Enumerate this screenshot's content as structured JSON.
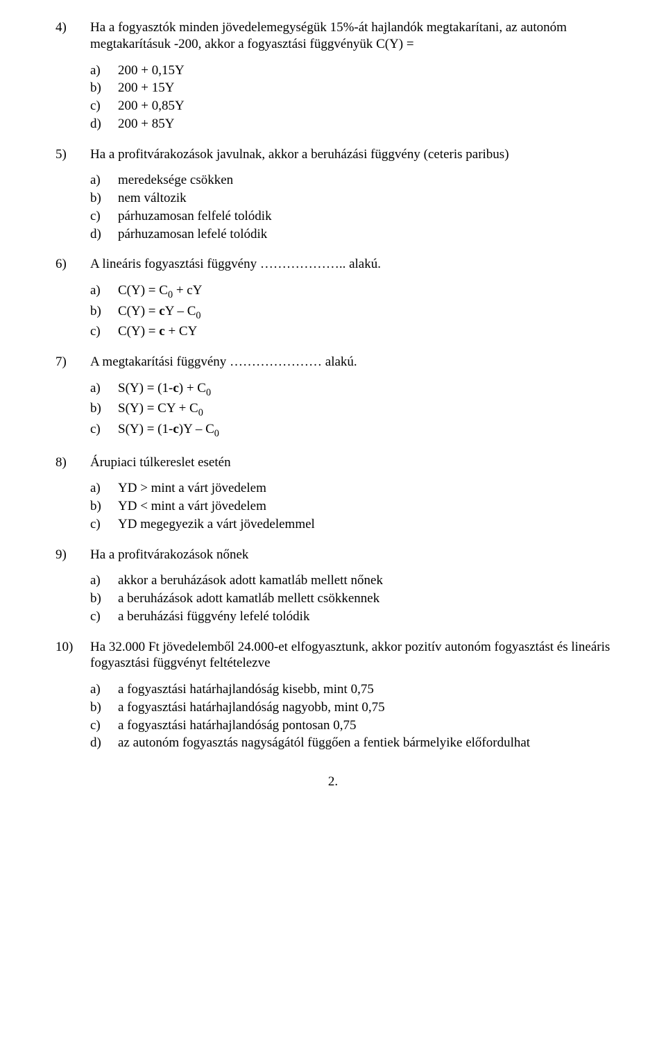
{
  "questions": [
    {
      "num": "4)",
      "stem": "Ha a fogyasztók minden jövedelemegységük 15%-át hajlandók megtakarítani, az autonóm megtakarításuk -200, akkor a fogyasztási függvényük C(Y) =",
      "opts": [
        {
          "l": "a)",
          "t": "200 + 0,15Y"
        },
        {
          "l": "b)",
          "t": "200 + 15Y"
        },
        {
          "l": "c)",
          "t": "200 + 0,85Y"
        },
        {
          "l": "d)",
          "t": "200 + 85Y"
        }
      ]
    },
    {
      "num": "5)",
      "stem": "Ha a profitvárakozások javulnak, akkor a beruházási függvény (ceteris paribus)",
      "opts": [
        {
          "l": "a)",
          "t": "meredeksége csökken"
        },
        {
          "l": "b)",
          "t": "nem változik"
        },
        {
          "l": "c)",
          "t": "párhuzamosan felfelé tolódik"
        },
        {
          "l": "d)",
          "t": "párhuzamosan lefelé tolódik"
        }
      ]
    },
    {
      "num": "6)",
      "stem": "A lineáris fogyasztási függvény ……………….. alakú.",
      "opts": [
        {
          "l": "a)",
          "html": "C(Y) = C<span class='sub0'>0</span> + cY"
        },
        {
          "l": "b)",
          "html": "C(Y) = <b>c</b>Y – C<span class='sub0'>0</span>"
        },
        {
          "l": "c)",
          "html": "C(Y) = <b>c</b> + CY"
        }
      ]
    },
    {
      "num": "7)",
      "stem": "A megtakarítási függvény ………………… alakú.",
      "opts": [
        {
          "l": "a)",
          "html": "S(Y) = (1-<b>c</b>) + C<span class='sub0'>0</span>"
        },
        {
          "l": "b)",
          "html": "S(Y) = CY + C<span class='sub0'>0</span>"
        },
        {
          "l": "c)",
          "html": "S(Y) = (1-<b>c</b>)Y – C<span class='sub0'>0</span>"
        }
      ]
    },
    {
      "num": "8)",
      "stem": "Árupiaci túlkereslet esetén",
      "opts": [
        {
          "l": "a)",
          "t": "YD > mint a várt jövedelem"
        },
        {
          "l": "b)",
          "t": "YD < mint a várt jövedelem"
        },
        {
          "l": "c)",
          "t": "YD megegyezik a várt jövedelemmel"
        }
      ]
    },
    {
      "num": "9)",
      "stem": "Ha a profitvárakozások nőnek",
      "opts": [
        {
          "l": "a)",
          "t": "akkor a beruházások adott kamatláb mellett nőnek"
        },
        {
          "l": "b)",
          "t": "a beruházások adott kamatláb mellett csökkennek"
        },
        {
          "l": "c)",
          "t": "a beruházási függvény lefelé tolódik"
        }
      ]
    },
    {
      "num": "10)",
      "stem": "Ha 32.000 Ft jövedelemből 24.000-et elfogyasztunk, akkor pozitív autonóm fogyasztást és lineáris fogyasztási függvényt feltételezve",
      "opts": [
        {
          "l": "a)",
          "t": "a fogyasztási határhajlandóság kisebb, mint 0,75"
        },
        {
          "l": "b)",
          "t": "a fogyasztási határhajlandóság nagyobb, mint 0,75"
        },
        {
          "l": "c)",
          "t": "a fogyasztási határhajlandóság pontosan 0,75"
        },
        {
          "l": "d)",
          "t": "az autonóm fogyasztás nagyságától függően a fentiek bármelyike előfordulhat"
        }
      ]
    }
  ],
  "page_number": "2."
}
